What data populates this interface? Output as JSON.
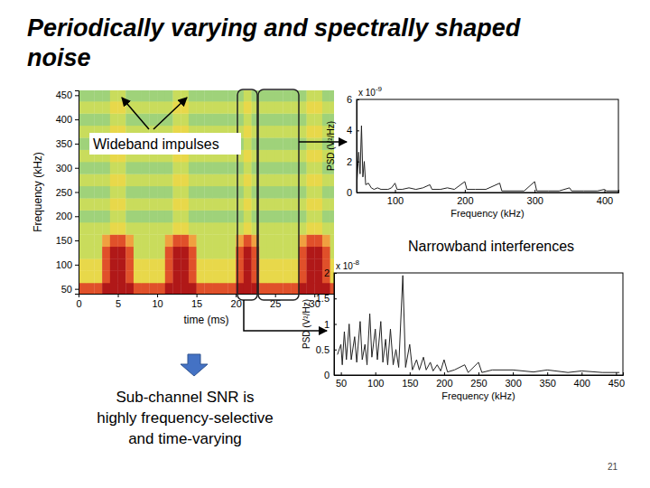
{
  "slide": {
    "title_lines": [
      "Periodically varying and spectrally shaped",
      "noise"
    ],
    "note_lines": [
      "Sub-channel SNR is",
      "highly frequency-selective",
      "and time-varying"
    ],
    "page": 21
  },
  "chart_data": [
    {
      "type": "heatmap",
      "x_label": "time (ms)",
      "y_label": "Frequency (kHz)",
      "annotation": "Wideband impulses",
      "xlim": [
        0,
        32.5
      ],
      "ylim": [
        40,
        460
      ],
      "xticks": [
        0,
        5,
        10,
        15,
        20,
        25,
        30
      ],
      "yticks": [
        50,
        100,
        150,
        200,
        250,
        300,
        350,
        400,
        450
      ],
      "x": [
        0.5,
        1.5,
        2.5,
        3.5,
        4.5,
        5.5,
        6.5,
        7.5,
        8.5,
        9.5,
        10.5,
        11.5,
        12.5,
        13.5,
        14.5,
        15.5,
        16.5,
        17.5,
        18.5,
        19.5,
        20.5,
        21.5,
        22.5,
        23.5,
        24.5,
        25.5,
        26.5,
        27.5,
        28.5,
        29.5,
        30.5,
        31.5,
        32.5
      ],
      "y": [
        50,
        75,
        100,
        125,
        150,
        175,
        200,
        225,
        250,
        275,
        300,
        325,
        350,
        375,
        400,
        425,
        450
      ],
      "z": [
        [
          8,
          8,
          8,
          9,
          9,
          9,
          9,
          8,
          8,
          8,
          8,
          9,
          9,
          9,
          9,
          8,
          8,
          8,
          8,
          8,
          9,
          9,
          9,
          8,
          8,
          8,
          8,
          8,
          9,
          9,
          9,
          9,
          8
        ],
        [
          6,
          6,
          6,
          8,
          9,
          9,
          8,
          6,
          6,
          6,
          6,
          8,
          9,
          9,
          8,
          6,
          6,
          6,
          6,
          6,
          8,
          9,
          8,
          6,
          6,
          6,
          6,
          6,
          8,
          9,
          9,
          8,
          6
        ],
        [
          6,
          6,
          6,
          8,
          9,
          9,
          8,
          6,
          6,
          6,
          6,
          8,
          9,
          9,
          8,
          6,
          6,
          6,
          6,
          6,
          8,
          9,
          8,
          6,
          6,
          6,
          6,
          6,
          8,
          9,
          9,
          8,
          6
        ],
        [
          5,
          5,
          5,
          8,
          9,
          9,
          8,
          5,
          5,
          5,
          5,
          8,
          9,
          9,
          8,
          5,
          5,
          5,
          5,
          5,
          8,
          9,
          8,
          5,
          5,
          5,
          5,
          5,
          8,
          9,
          9,
          8,
          5
        ],
        [
          5,
          5,
          5,
          7,
          8,
          8,
          7,
          5,
          5,
          5,
          5,
          7,
          8,
          8,
          7,
          5,
          5,
          5,
          5,
          5,
          7,
          8,
          7,
          5,
          5,
          5,
          5,
          5,
          7,
          8,
          8,
          7,
          5
        ],
        [
          5,
          5,
          5,
          5,
          6,
          6,
          5,
          5,
          5,
          5,
          5,
          5,
          6,
          6,
          5,
          5,
          5,
          5,
          5,
          5,
          5,
          6,
          5,
          5,
          5,
          5,
          5,
          5,
          5,
          6,
          6,
          5,
          5
        ],
        [
          4,
          4,
          4,
          4,
          5,
          5,
          4,
          4,
          4,
          4,
          4,
          4,
          5,
          5,
          4,
          4,
          4,
          4,
          4,
          4,
          4,
          5,
          4,
          4,
          4,
          4,
          4,
          4,
          4,
          5,
          5,
          4,
          4
        ],
        [
          5,
          5,
          5,
          5,
          6,
          6,
          5,
          5,
          5,
          5,
          5,
          5,
          6,
          6,
          5,
          5,
          5,
          5,
          5,
          5,
          5,
          6,
          5,
          5,
          5,
          5,
          5,
          5,
          5,
          6,
          6,
          5,
          5
        ],
        [
          4,
          4,
          4,
          4,
          5,
          5,
          4,
          4,
          4,
          4,
          4,
          4,
          5,
          5,
          4,
          4,
          4,
          4,
          4,
          4,
          4,
          5,
          4,
          4,
          4,
          4,
          4,
          4,
          4,
          5,
          5,
          4,
          4
        ],
        [
          5,
          5,
          5,
          5,
          6,
          6,
          5,
          5,
          5,
          5,
          5,
          5,
          6,
          6,
          5,
          5,
          5,
          5,
          5,
          5,
          5,
          6,
          5,
          5,
          5,
          5,
          5,
          5,
          5,
          6,
          6,
          5,
          5
        ],
        [
          4,
          4,
          4,
          4,
          5,
          5,
          4,
          4,
          4,
          4,
          4,
          4,
          5,
          5,
          4,
          4,
          4,
          4,
          4,
          4,
          4,
          5,
          4,
          4,
          4,
          4,
          4,
          4,
          4,
          5,
          5,
          4,
          4
        ],
        [
          5,
          5,
          5,
          5,
          6,
          6,
          5,
          5,
          5,
          5,
          5,
          5,
          6,
          6,
          5,
          5,
          5,
          5,
          5,
          5,
          5,
          6,
          5,
          5,
          5,
          5,
          5,
          5,
          5,
          6,
          6,
          5,
          5
        ],
        [
          4,
          4,
          4,
          4,
          5,
          5,
          4,
          4,
          4,
          4,
          4,
          4,
          5,
          5,
          4,
          4,
          4,
          4,
          4,
          4,
          4,
          5,
          4,
          4,
          4,
          4,
          4,
          4,
          4,
          5,
          5,
          4,
          4
        ],
        [
          5,
          5,
          5,
          5,
          6,
          6,
          5,
          5,
          5,
          5,
          5,
          5,
          6,
          6,
          5,
          5,
          5,
          5,
          5,
          5,
          5,
          6,
          5,
          5,
          5,
          5,
          5,
          5,
          5,
          6,
          6,
          5,
          5
        ],
        [
          4,
          4,
          4,
          4,
          5,
          5,
          4,
          4,
          4,
          4,
          4,
          4,
          5,
          5,
          4,
          4,
          4,
          4,
          4,
          4,
          4,
          5,
          4,
          4,
          4,
          4,
          4,
          4,
          4,
          5,
          5,
          4,
          4
        ],
        [
          5,
          5,
          5,
          5,
          6,
          6,
          5,
          5,
          5,
          5,
          5,
          5,
          6,
          6,
          5,
          5,
          5,
          5,
          5,
          5,
          5,
          6,
          5,
          5,
          5,
          5,
          5,
          5,
          5,
          6,
          6,
          5,
          5
        ],
        [
          4,
          4,
          4,
          4,
          5,
          5,
          4,
          4,
          4,
          4,
          4,
          4,
          5,
          5,
          4,
          4,
          4,
          4,
          4,
          4,
          4,
          5,
          4,
          4,
          4,
          4,
          4,
          4,
          4,
          5,
          5,
          4,
          4
        ]
      ]
    },
    {
      "type": "line",
      "x_label": "Frequency (kHz)",
      "y_label": "PSD (V²/Hz)",
      "y_multiplier": {
        "text": "x 10",
        "exponent": "-9"
      },
      "color": "#222222",
      "xlim": [
        45,
        420
      ],
      "ylim": [
        0,
        6
      ],
      "xticks": [
        100,
        200,
        300,
        400
      ],
      "yticks": [
        0,
        2,
        4,
        6
      ],
      "x": [
        45,
        48,
        50,
        52,
        54,
        56,
        58,
        62,
        66,
        70,
        75,
        80,
        90,
        95,
        100,
        103,
        110,
        120,
        130,
        140,
        150,
        153,
        165,
        175,
        185,
        200,
        203,
        215,
        230,
        250,
        253,
        270,
        285,
        300,
        303,
        320,
        335,
        350,
        353,
        370,
        390,
        400,
        403,
        420
      ],
      "values": [
        0.3,
        2.6,
        1.2,
        4.3,
        1.0,
        2.0,
        0.5,
        0.6,
        0.3,
        0.2,
        0.3,
        0.2,
        0.2,
        0.3,
        0.6,
        0.2,
        0.2,
        0.3,
        0.2,
        0.3,
        0.5,
        0.2,
        0.2,
        0.3,
        0.2,
        0.7,
        0.2,
        0.2,
        0.2,
        0.6,
        0.1,
        0.1,
        0.1,
        0.7,
        0.1,
        0.1,
        0.1,
        0.3,
        0.1,
        0.1,
        0.1,
        0.2,
        0.1,
        0.1
      ]
    },
    {
      "type": "line",
      "x_label": "Frequency (kHz)",
      "y_label": "PSD (V²/Hz)",
      "annotation": "Narrowband interferences",
      "y_multiplier": {
        "text": "x 10",
        "exponent": "-8"
      },
      "color": "#222222",
      "xlim": [
        40,
        460
      ],
      "ylim": [
        0,
        2
      ],
      "xticks": [
        50,
        100,
        150,
        200,
        250,
        300,
        350,
        400,
        450
      ],
      "yticks": [
        0,
        0.5,
        1,
        1.5,
        2
      ],
      "x": [
        45,
        50,
        52,
        55,
        58,
        62,
        65,
        70,
        73,
        78,
        81,
        85,
        88,
        92,
        95,
        100,
        103,
        108,
        111,
        115,
        118,
        122,
        126,
        130,
        134,
        140,
        144,
        150,
        154,
        160,
        164,
        170,
        174,
        180,
        184,
        190,
        195,
        200,
        205,
        215,
        230,
        235,
        250,
        255,
        270,
        300,
        330,
        350,
        380,
        400,
        430,
        455
      ],
      "values": [
        0.4,
        0.6,
        0.2,
        0.85,
        0.3,
        1.0,
        0.3,
        0.75,
        0.25,
        1.05,
        0.3,
        0.6,
        0.2,
        1.2,
        0.35,
        0.9,
        0.3,
        1.05,
        0.25,
        0.7,
        0.2,
        0.9,
        0.2,
        0.5,
        0.15,
        1.95,
        0.15,
        0.6,
        0.1,
        0.3,
        0.1,
        0.35,
        0.1,
        0.25,
        0.08,
        0.2,
        0.08,
        0.3,
        0.06,
        0.1,
        0.2,
        0.05,
        0.25,
        0.05,
        0.1,
        0.1,
        0.06,
        0.1,
        0.05,
        0.08,
        0.05,
        0.05
      ]
    }
  ]
}
